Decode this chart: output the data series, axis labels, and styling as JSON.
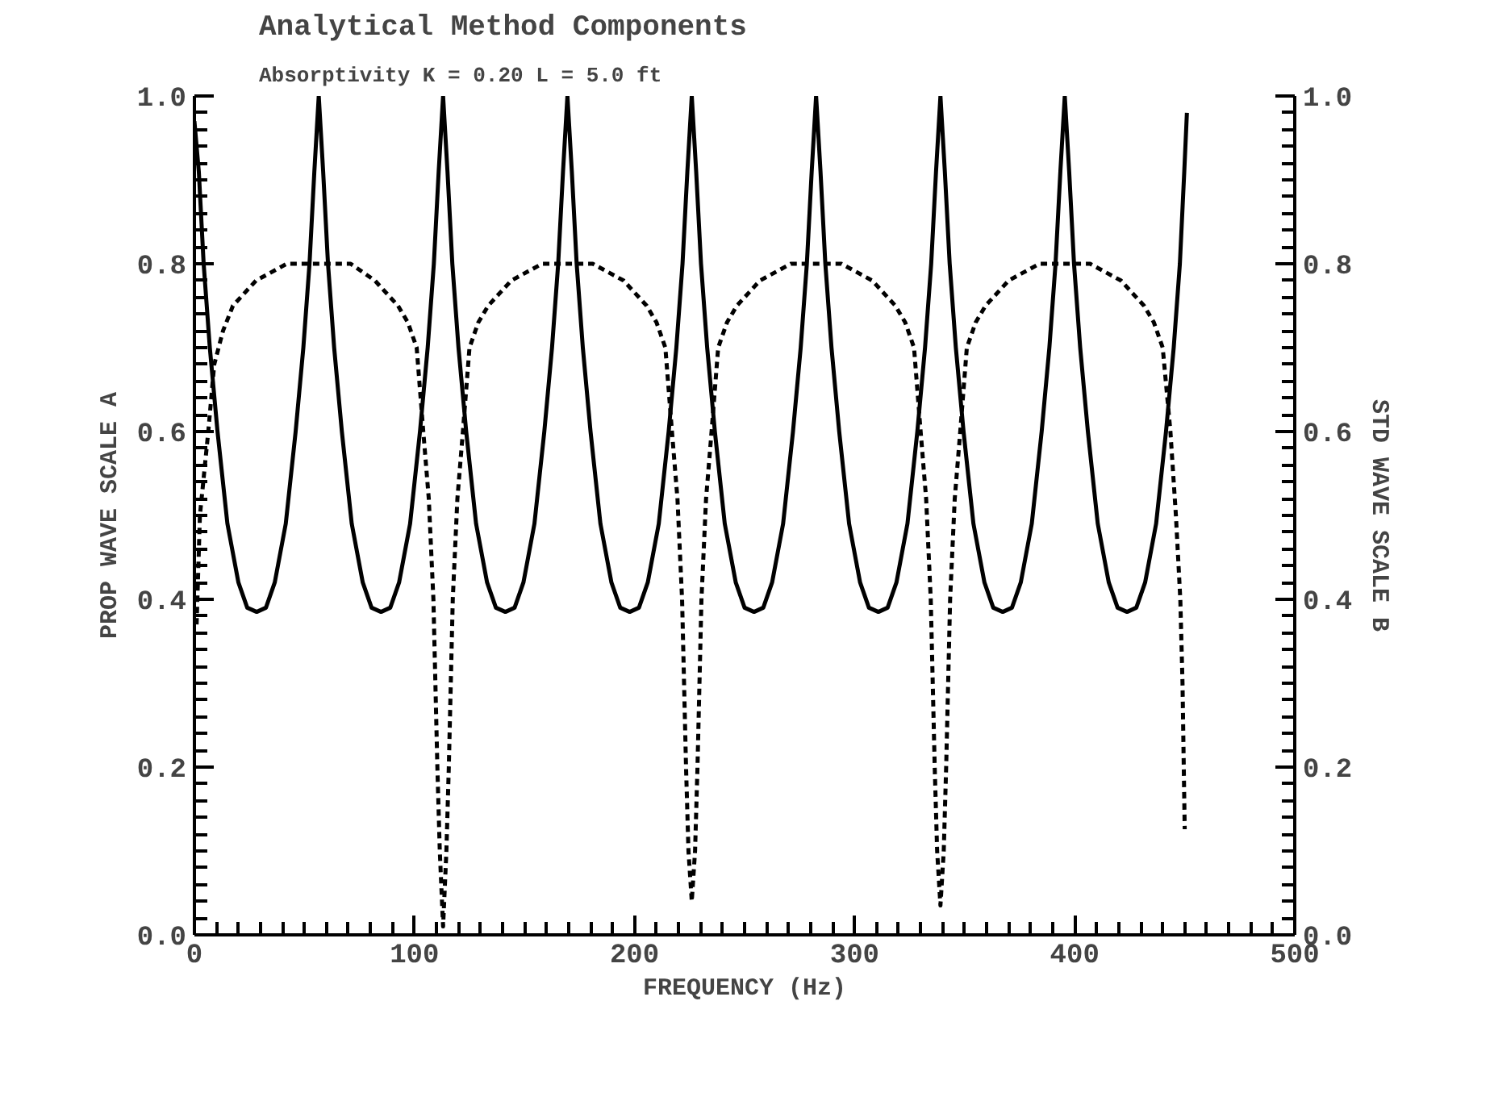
{
  "chart_data": {
    "type": "line",
    "title": "Analytical Method Components",
    "subtitle": "Absorptivity  K = 0.20  L = 5.0 ft",
    "xlabel": "FREQUENCY (Hz)",
    "ylabel": "PROP WAVE SCALE A",
    "y2label": "STD WAVE SCALE B",
    "xlim": [
      0,
      500
    ],
    "xticks": [
      0,
      100,
      200,
      300,
      400,
      500
    ],
    "ylim": [
      0,
      1
    ],
    "yticks": [
      {
        "value": 0,
        "label": "0.0"
      },
      {
        "value": 0.2,
        "label": "0.2"
      },
      {
        "value": 0.4,
        "label": "0.4"
      },
      {
        "value": 0.6,
        "label": "0.6"
      },
      {
        "value": 0.8,
        "label": "0.8"
      },
      {
        "value": 1,
        "label": "1.0"
      }
    ],
    "y2lim": [
      0,
      1
    ],
    "y2ticks": [
      {
        "value": 0,
        "label": "0.0"
      },
      {
        "value": 0.2,
        "label": "0.2"
      },
      {
        "value": 0.4,
        "label": "0.4"
      },
      {
        "value": 0.6,
        "label": "0.6"
      },
      {
        "value": 0.8,
        "label": "0.8"
      },
      {
        "value": 1,
        "label": "1.0"
      }
    ],
    "grid": false,
    "marker": "none",
    "series": [
      {
        "color": "#000000",
        "line_style": "solid",
        "x": [
          0,
          2,
          4.2,
          7,
          10.5,
          15,
          20,
          24,
          28.3,
          32.5,
          36.5,
          41.5,
          46,
          49.5,
          52.3,
          54.5,
          56.5,
          58.5,
          60.7,
          63.5,
          67,
          71.5,
          76.5,
          80.5,
          84.8,
          89,
          93,
          98,
          102.5,
          106,
          108.8,
          111,
          113,
          115,
          117.2,
          120,
          123.5,
          128,
          133,
          137,
          141.3,
          145.5,
          149.5,
          154.5,
          159,
          162.5,
          165.3,
          167.5,
          169.5,
          171.5,
          173.7,
          176.5,
          180,
          184.5,
          189.5,
          193.5,
          197.8,
          202,
          206,
          211,
          215.5,
          219,
          221.8,
          224,
          226,
          228,
          230.2,
          233,
          236.5,
          241,
          246,
          250,
          254.3,
          258.5,
          262.5,
          267.5,
          272,
          275.5,
          278.3,
          280.5,
          282.5,
          284.5,
          286.7,
          289.5,
          293,
          297.5,
          302.5,
          306.5,
          310.8,
          315,
          319,
          324,
          328.5,
          332,
          334.8,
          337,
          339,
          341,
          343.2,
          346,
          349.5,
          354,
          359,
          363,
          367.3,
          371.5,
          375.5,
          380.5,
          385,
          388.5,
          391.3,
          393.5,
          395.5,
          397.5,
          399.7,
          402.5,
          406,
          410.5,
          415.5,
          419.5,
          423.8,
          428,
          432,
          437,
          441.5,
          445,
          447.8,
          449.8,
          451
        ],
        "values": [
          0.97,
          0.91,
          0.8,
          0.7,
          0.6,
          0.49,
          0.42,
          0.39,
          0.385,
          0.39,
          0.42,
          0.49,
          0.6,
          0.7,
          0.8,
          0.91,
          1.0,
          0.91,
          0.8,
          0.7,
          0.6,
          0.49,
          0.42,
          0.39,
          0.385,
          0.39,
          0.42,
          0.49,
          0.6,
          0.7,
          0.8,
          0.91,
          1.0,
          0.91,
          0.8,
          0.7,
          0.6,
          0.49,
          0.42,
          0.39,
          0.385,
          0.39,
          0.42,
          0.49,
          0.6,
          0.7,
          0.8,
          0.91,
          1.0,
          0.91,
          0.8,
          0.7,
          0.6,
          0.49,
          0.42,
          0.39,
          0.385,
          0.39,
          0.42,
          0.49,
          0.6,
          0.7,
          0.8,
          0.91,
          1.0,
          0.91,
          0.8,
          0.7,
          0.6,
          0.49,
          0.42,
          0.39,
          0.385,
          0.39,
          0.42,
          0.49,
          0.6,
          0.7,
          0.8,
          0.91,
          1.0,
          0.91,
          0.8,
          0.7,
          0.6,
          0.49,
          0.42,
          0.39,
          0.385,
          0.39,
          0.42,
          0.49,
          0.6,
          0.7,
          0.8,
          0.91,
          1.0,
          0.91,
          0.8,
          0.7,
          0.6,
          0.49,
          0.42,
          0.39,
          0.385,
          0.39,
          0.42,
          0.49,
          0.6,
          0.7,
          0.8,
          0.91,
          1.0,
          0.91,
          0.8,
          0.7,
          0.6,
          0.49,
          0.42,
          0.39,
          0.385,
          0.39,
          0.42,
          0.49,
          0.6,
          0.7,
          0.8,
          0.91,
          0.98
        ]
      },
      {
        "color": "#000000",
        "line_style": "dashed",
        "x": [
          1,
          2.5,
          6.3,
          9,
          13,
          17.5,
          28,
          42,
          56.5,
          71,
          82,
          92.5,
          97,
          101,
          104,
          106.5,
          108.6,
          110.4,
          111.5,
          113,
          114.5,
          115.6,
          117.4,
          119.5,
          122,
          125,
          129,
          133.5,
          144,
          158,
          169.5,
          181,
          195,
          205.5,
          210,
          214,
          217,
          219.5,
          221.6,
          223.4,
          224.5,
          226,
          227.5,
          228.6,
          230.4,
          232.5,
          235,
          238,
          242,
          246.5,
          257,
          271,
          282.5,
          294,
          308,
          318.5,
          323,
          327,
          330,
          332.5,
          334.6,
          336.4,
          337.5,
          339,
          340.5,
          341.6,
          343.4,
          345.5,
          348,
          351,
          355,
          359.5,
          370,
          384,
          395.5,
          407,
          421,
          431.5,
          436,
          440,
          443.5,
          446,
          448,
          449,
          450
        ],
        "values": [
          0.37,
          0.5,
          0.6,
          0.68,
          0.72,
          0.75,
          0.78,
          0.8,
          0.8,
          0.8,
          0.78,
          0.75,
          0.73,
          0.7,
          0.6,
          0.52,
          0.4,
          0.2,
          0.1,
          0.01,
          0.1,
          0.2,
          0.4,
          0.52,
          0.6,
          0.7,
          0.73,
          0.75,
          0.78,
          0.8,
          0.8,
          0.8,
          0.78,
          0.75,
          0.73,
          0.7,
          0.6,
          0.52,
          0.4,
          0.2,
          0.1,
          0.04,
          0.1,
          0.2,
          0.4,
          0.52,
          0.6,
          0.7,
          0.73,
          0.75,
          0.78,
          0.8,
          0.8,
          0.8,
          0.78,
          0.75,
          0.73,
          0.7,
          0.6,
          0.52,
          0.4,
          0.2,
          0.1,
          0.035,
          0.1,
          0.2,
          0.4,
          0.52,
          0.6,
          0.7,
          0.73,
          0.75,
          0.78,
          0.8,
          0.8,
          0.8,
          0.78,
          0.75,
          0.73,
          0.7,
          0.6,
          0.5,
          0.4,
          0.3,
          0.126
        ]
      }
    ]
  }
}
